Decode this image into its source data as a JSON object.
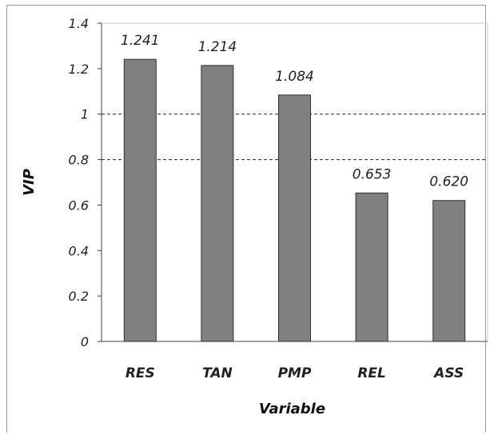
{
  "chart_data": {
    "type": "bar",
    "title": "",
    "xlabel": "Variable",
    "ylabel": "VIP",
    "categories": [
      "RES",
      "TAN",
      "PMP",
      "REL",
      "ASS"
    ],
    "values": [
      1.241,
      1.214,
      1.084,
      0.653,
      0.62
    ],
    "data_labels": [
      "1.241",
      "1.214",
      "1.084",
      "0.653",
      "0.620"
    ],
    "ylim": [
      0,
      1.4
    ],
    "yticks": [
      0,
      0.2,
      0.4,
      0.6,
      0.8,
      1,
      1.2,
      1.4
    ],
    "ytick_labels": [
      "0",
      "0.2",
      "0.4",
      "0.6",
      "0.8",
      "1",
      "1.2",
      "1.4"
    ],
    "reference_lines": [
      0.8,
      1.0
    ],
    "grid": false,
    "legend": "none",
    "colors": {
      "bar_fill": "#808080",
      "bar_stroke": "#2f2f2f",
      "axis": "#404040",
      "reference_line": "#222222"
    }
  }
}
